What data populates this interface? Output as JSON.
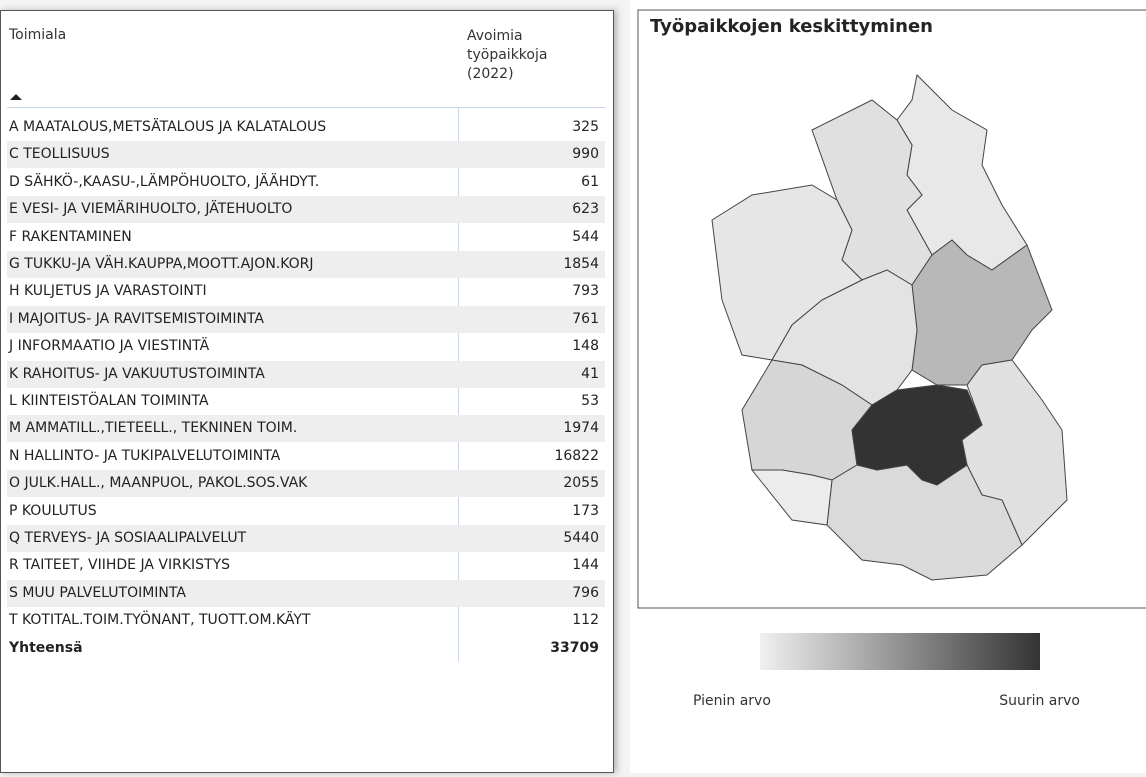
{
  "table": {
    "headers": [
      "Toimiala",
      "Avoimia työpaikkoja (2022)"
    ],
    "rows": [
      [
        "A MAATALOUS,METSÄTALOUS JA KALATALOUS",
        325
      ],
      [
        "C TEOLLISUUS",
        990
      ],
      [
        "D SÄHKÖ-,KAASU-,LÄMPÖHUOLTO, JÄÄHDYT.",
        61
      ],
      [
        "E VESI- JA VIEMÄRIHUOLTO, JÄTEHUOLTO",
        623
      ],
      [
        "F RAKENTAMINEN",
        544
      ],
      [
        "G TUKKU-JA VÄH.KAUPPA,MOOTT.AJON.KORJ",
        1854
      ],
      [
        "H KULJETUS JA VARASTOINTI",
        793
      ],
      [
        "I MAJOITUS- JA RAVITSEMISTOIMINTA",
        761
      ],
      [
        "J INFORMAATIO JA VIESTINTÄ",
        148
      ],
      [
        "K RAHOITUS- JA VAKUUTUSTOIMINTA",
        41
      ],
      [
        "L KIINTEISTÖALAN TOIMINTA",
        53
      ],
      [
        "M AMMATILL.,TIETEELL., TEKNINEN TOIM.",
        1974
      ],
      [
        "N HALLINTO- JA TUKIPALVELUTOIMINTA",
        16822
      ],
      [
        "O JULK.HALL., MAANPUOL, PAKOL.SOS.VAK",
        2055
      ],
      [
        "P KOULUTUS",
        173
      ],
      [
        "Q TERVEYS- JA SOSIAALIPALVELUT",
        5440
      ],
      [
        "R TAITEET, VIIHDE JA VIRKISTYS",
        144
      ],
      [
        "S MUU PALVELUTOIMINTA",
        796
      ],
      [
        "T KOTITAL.TOIM.TYÖNANT, TUOTT.OM.KÄYT",
        112
      ]
    ],
    "total": [
      "Yhteensä",
      33709
    ]
  },
  "map": {
    "title": "Työpaikkojen keskittyminen",
    "legend": {
      "min_label": "Pienin arvo",
      "max_label": "Suurin arvo"
    }
  }
}
